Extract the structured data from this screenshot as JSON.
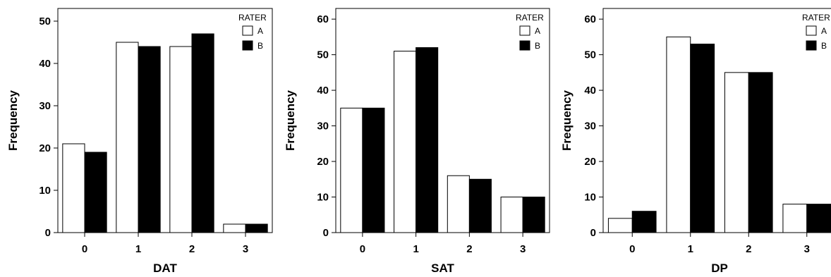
{
  "chart_data": [
    {
      "type": "bar",
      "categories": [
        "0",
        "1",
        "2",
        "3"
      ],
      "series": [
        {
          "name": "A",
          "values": [
            21,
            45,
            44,
            2
          ],
          "color": "#ffffff"
        },
        {
          "name": "B",
          "values": [
            19,
            44,
            47,
            2
          ],
          "color": "#000000"
        }
      ],
      "xlabel": "DAT",
      "ylabel": "Frequency",
      "ylim": [
        0,
        53
      ],
      "yticks": [
        0,
        10,
        20,
        30,
        40,
        50
      ],
      "legend_title": "RATER",
      "legend_position": "top-right",
      "grid": false
    },
    {
      "type": "bar",
      "categories": [
        "0",
        "1",
        "2",
        "3"
      ],
      "series": [
        {
          "name": "A",
          "values": [
            35,
            51,
            16,
            10
          ],
          "color": "#ffffff"
        },
        {
          "name": "B",
          "values": [
            35,
            52,
            15,
            10
          ],
          "color": "#000000"
        }
      ],
      "xlabel": "SAT",
      "ylabel": "Frequency",
      "ylim": [
        0,
        63
      ],
      "yticks": [
        0,
        10,
        20,
        30,
        40,
        50,
        60
      ],
      "legend_title": "RATER",
      "legend_position": "top-right",
      "grid": false
    },
    {
      "type": "bar",
      "categories": [
        "0",
        "1",
        "2",
        "3"
      ],
      "series": [
        {
          "name": "A",
          "values": [
            4,
            55,
            45,
            8
          ],
          "color": "#ffffff"
        },
        {
          "name": "B",
          "values": [
            6,
            53,
            45,
            8
          ],
          "color": "#000000"
        }
      ],
      "xlabel": "DP",
      "ylabel": "Frequency",
      "ylim": [
        0,
        63
      ],
      "yticks": [
        0,
        10,
        20,
        30,
        40,
        50,
        60
      ],
      "legend_title": "RATER",
      "legend_position": "top-right",
      "grid": false
    }
  ]
}
